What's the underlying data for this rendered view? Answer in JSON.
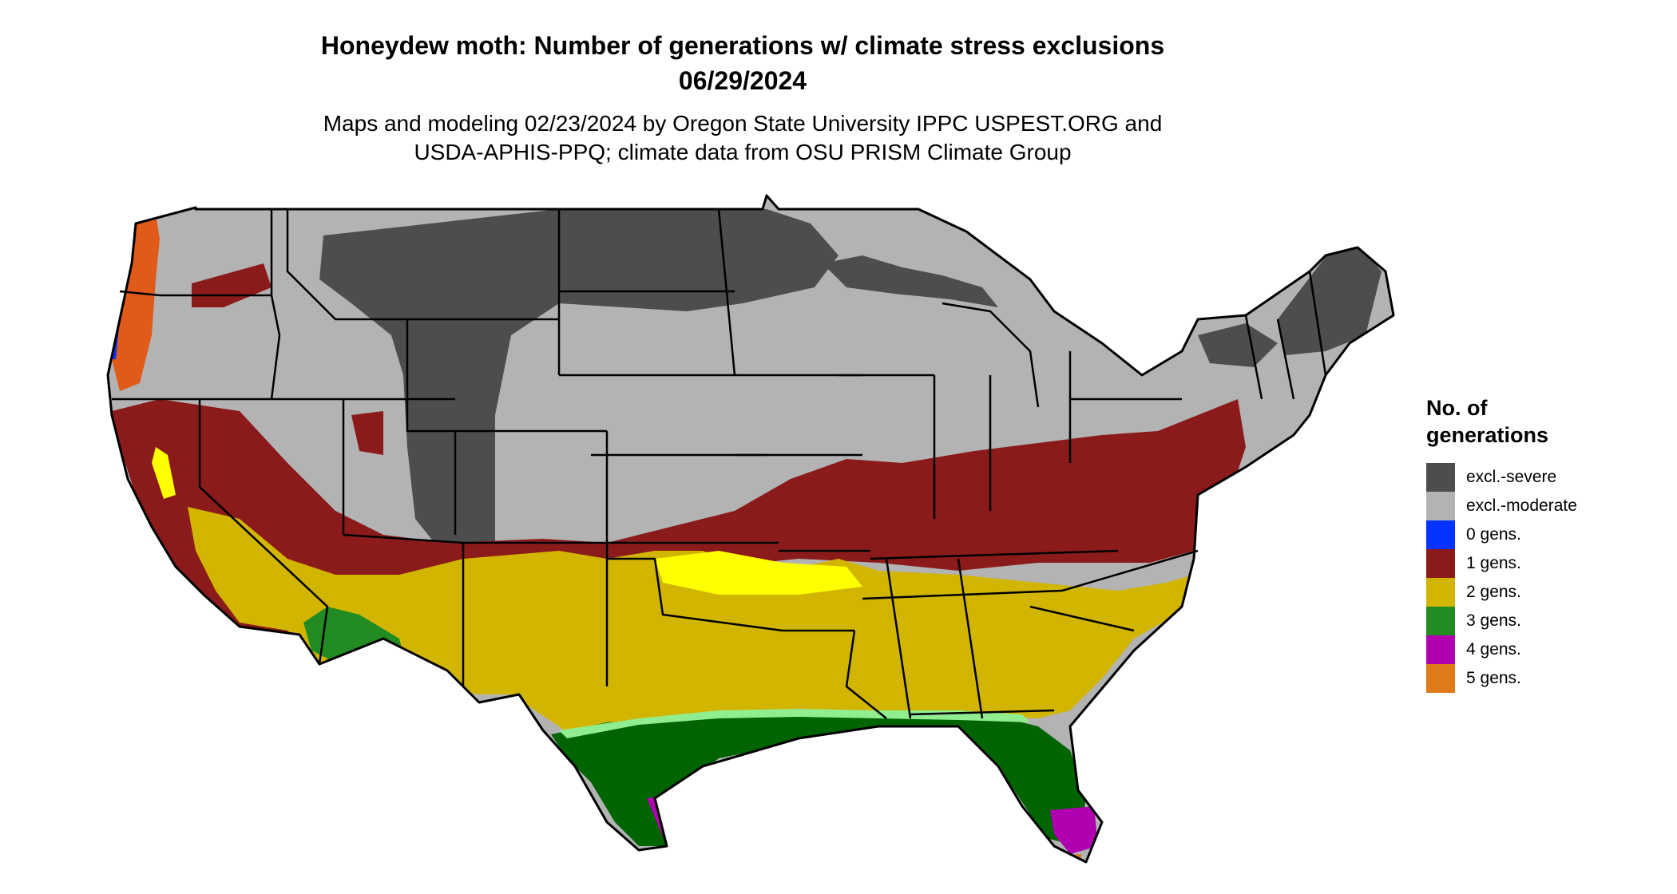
{
  "header": {
    "title_line1": "Honeydew moth: Number of generations w/ climate stress exclusions",
    "title_line2": "06/29/2024",
    "subtitle_line1": "Maps and modeling 02/23/2024 by Oregon State University IPPC USPEST.ORG and",
    "subtitle_line2": "USDA-APHIS-PPQ; climate data from OSU PRISM Climate Group"
  },
  "legend": {
    "title_line1": "No. of",
    "title_line2": "generations",
    "items": [
      {
        "label": "excl.-severe",
        "color": "#4d4d4d"
      },
      {
        "label": "excl.-moderate",
        "color": "#b3b3b3"
      },
      {
        "label": "0 gens.",
        "color": "#0433ff"
      },
      {
        "label": "1 gens.",
        "color": "#8b1a1a"
      },
      {
        "label": "2 gens.",
        "color": "#d2b500"
      },
      {
        "label": "3 gens.",
        "color": "#228b22"
      },
      {
        "label": "4 gens.",
        "color": "#b000b0"
      },
      {
        "label": "5 gens.",
        "color": "#e07b1b"
      }
    ]
  },
  "map": {
    "region": "contiguous-united-states",
    "zone_colors": {
      "excl_severe": "#4d4d4d",
      "excl_moderate": "#b3b3b3",
      "gen0": "#0433ff",
      "gen1": "#8b1a1a",
      "gen2": "#d2b500",
      "gen2_light": "#ffff00",
      "gen3": "#006400",
      "gen3_light": "#90ee90",
      "gen4": "#b000b0",
      "gen5": "#e07b1b",
      "state_border": "#000000"
    }
  }
}
